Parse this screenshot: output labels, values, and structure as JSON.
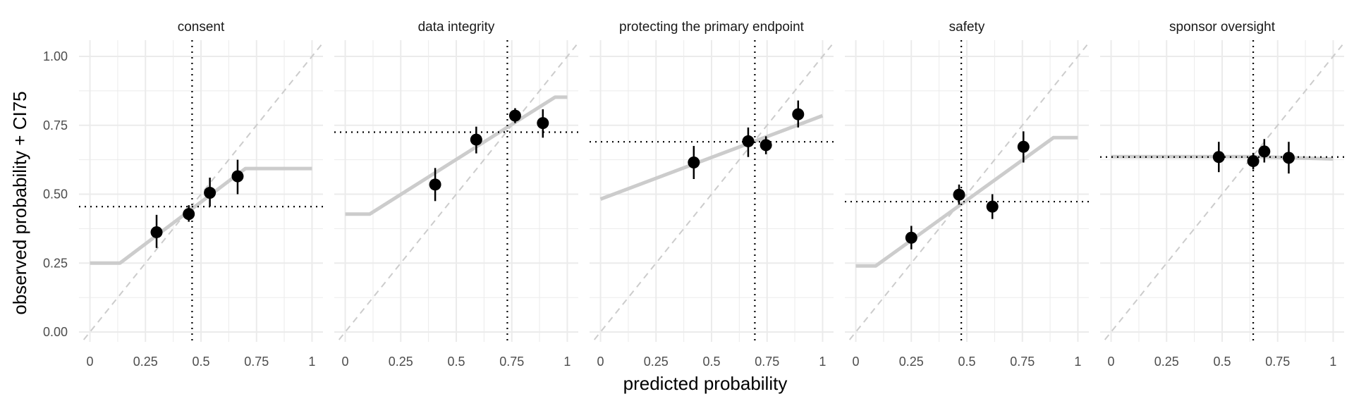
{
  "chart_data": {
    "type": "scatter",
    "xlabel": "predicted probability",
    "ylabel": "observed probability + CI75",
    "xlim": [
      0,
      1
    ],
    "ylim": [
      0,
      1
    ],
    "x_ticks": [
      "0",
      "0.25",
      "0.5",
      "0.75",
      "1"
    ],
    "y_ticks": [
      "0.00",
      "0.25",
      "0.50",
      "0.75",
      "1.00"
    ],
    "grid": true,
    "colors": {
      "points": "#000000",
      "fit_line": "#cccccc",
      "identity_line": "#cccccc",
      "reference_lines": "#000000",
      "grid": "#ebebeb"
    },
    "panels": [
      {
        "title": "consent",
        "vline": 0.46,
        "hline": 0.455,
        "fit": [
          [
            0,
            0.25
          ],
          [
            0.135,
            0.25
          ],
          [
            0.7,
            0.593
          ],
          [
            1,
            0.593
          ]
        ],
        "points": [
          {
            "x": 0.3,
            "y": 0.362,
            "lo": 0.305,
            "hi": 0.425
          },
          {
            "x": 0.445,
            "y": 0.428,
            "lo": 0.4,
            "hi": 0.46
          },
          {
            "x": 0.54,
            "y": 0.505,
            "lo": 0.455,
            "hi": 0.56
          },
          {
            "x": 0.665,
            "y": 0.565,
            "lo": 0.5,
            "hi": 0.625
          }
        ]
      },
      {
        "title": "data integrity",
        "vline": 0.73,
        "hline": 0.725,
        "fit": [
          [
            0,
            0.428
          ],
          [
            0.11,
            0.428
          ],
          [
            0.945,
            0.852
          ],
          [
            1,
            0.852
          ]
        ],
        "points": [
          {
            "x": 0.405,
            "y": 0.535,
            "lo": 0.475,
            "hi": 0.595
          },
          {
            "x": 0.59,
            "y": 0.698,
            "lo": 0.648,
            "hi": 0.745
          },
          {
            "x": 0.765,
            "y": 0.785,
            "lo": 0.758,
            "hi": 0.812
          },
          {
            "x": 0.89,
            "y": 0.758,
            "lo": 0.705,
            "hi": 0.808
          }
        ]
      },
      {
        "title": "protecting the primary endpoint",
        "vline": 0.695,
        "hline": 0.69,
        "fit": [
          [
            0,
            0.482
          ],
          [
            1,
            0.785
          ]
        ],
        "points": [
          {
            "x": 0.42,
            "y": 0.615,
            "lo": 0.555,
            "hi": 0.675
          },
          {
            "x": 0.665,
            "y": 0.692,
            "lo": 0.635,
            "hi": 0.742
          },
          {
            "x": 0.745,
            "y": 0.678,
            "lo": 0.645,
            "hi": 0.71
          },
          {
            "x": 0.89,
            "y": 0.79,
            "lo": 0.742,
            "hi": 0.84
          }
        ]
      },
      {
        "title": "safety",
        "vline": 0.475,
        "hline": 0.473,
        "fit": [
          [
            0,
            0.24
          ],
          [
            0.09,
            0.24
          ],
          [
            0.89,
            0.705
          ],
          [
            1,
            0.705
          ]
        ],
        "points": [
          {
            "x": 0.25,
            "y": 0.342,
            "lo": 0.3,
            "hi": 0.385
          },
          {
            "x": 0.465,
            "y": 0.498,
            "lo": 0.462,
            "hi": 0.535
          },
          {
            "x": 0.615,
            "y": 0.455,
            "lo": 0.41,
            "hi": 0.5
          },
          {
            "x": 0.755,
            "y": 0.672,
            "lo": 0.615,
            "hi": 0.728
          }
        ]
      },
      {
        "title": "sponsor oversight",
        "vline": 0.64,
        "hline": 0.635,
        "fit": [
          [
            0,
            0.636
          ],
          [
            0.65,
            0.636
          ],
          [
            1,
            0.628
          ]
        ],
        "points": [
          {
            "x": 0.485,
            "y": 0.635,
            "lo": 0.58,
            "hi": 0.69
          },
          {
            "x": 0.64,
            "y": 0.62,
            "lo": 0.59,
            "hi": 0.65
          },
          {
            "x": 0.69,
            "y": 0.655,
            "lo": 0.615,
            "hi": 0.7
          },
          {
            "x": 0.8,
            "y": 0.632,
            "lo": 0.575,
            "hi": 0.69
          }
        ]
      }
    ]
  }
}
